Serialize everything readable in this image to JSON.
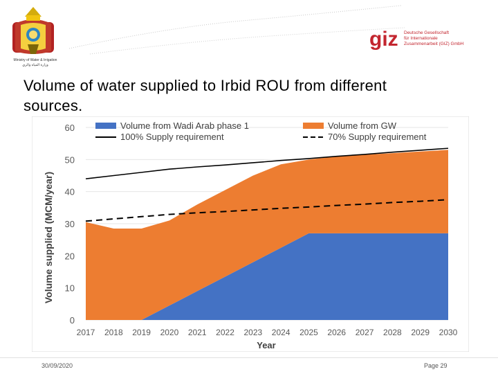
{
  "header": {
    "ministry_caption": "Ministry of Water & Irrigation",
    "ministry_caption_ar": "وزارة المياه والري",
    "partner_logo": "giz",
    "partner_text_lines": [
      "Deutsche Gesellschaft",
      "für Internationale",
      "Zusammenarbeit (GIZ) GmbH"
    ]
  },
  "slide": {
    "title_line1": "Volume of water supplied to Irbid ROU from different",
    "title_line2": "sources."
  },
  "colors": {
    "wadi_arab": "#4472c4",
    "gw": "#ed7d31",
    "giz_red": "#c3262f"
  },
  "chart_data": {
    "type": "area",
    "stacked": true,
    "title": "",
    "xlabel": "Year",
    "ylabel": "Volume supplied (MCM/year)",
    "ylim": [
      0,
      60
    ],
    "yticks": [
      0,
      10,
      20,
      30,
      40,
      50,
      60
    ],
    "grid": true,
    "legend_position": "top",
    "categories": [
      "2017",
      "2018",
      "2019",
      "2020",
      "2021",
      "2022",
      "2023",
      "2024",
      "2025",
      "2026",
      "2027",
      "2028",
      "2029",
      "2030"
    ],
    "series": [
      {
        "name": "Volume from Wadi Arab phase 1",
        "kind": "area",
        "color": "#4472c4",
        "values": [
          0,
          0,
          0,
          4.5,
          9,
          13.5,
          18,
          22.5,
          27,
          27,
          27,
          27,
          27,
          27
        ]
      },
      {
        "name": "Volume from GW",
        "kind": "area",
        "color": "#ed7d31",
        "values": [
          30.5,
          28.5,
          28.5,
          26.5,
          27,
          27,
          27,
          26,
          23,
          24,
          24.5,
          25,
          25.5,
          26
        ]
      },
      {
        "name": "100% Supply requirement",
        "kind": "line",
        "style": "solid",
        "color": "#000000",
        "values": [
          44,
          45,
          46,
          47,
          47.7,
          48.3,
          49,
          49.7,
          50.3,
          51,
          51.6,
          52.3,
          52.9,
          53.5
        ]
      },
      {
        "name": "70% Supply requirement",
        "kind": "line",
        "style": "dashed",
        "color": "#000000",
        "values": [
          30.8,
          31.5,
          32.2,
          32.9,
          33.4,
          33.8,
          34.3,
          34.8,
          35.2,
          35.7,
          36.1,
          36.6,
          37,
          37.5
        ]
      }
    ]
  },
  "footer": {
    "date": "30/09/2020",
    "page": "Page 29"
  }
}
